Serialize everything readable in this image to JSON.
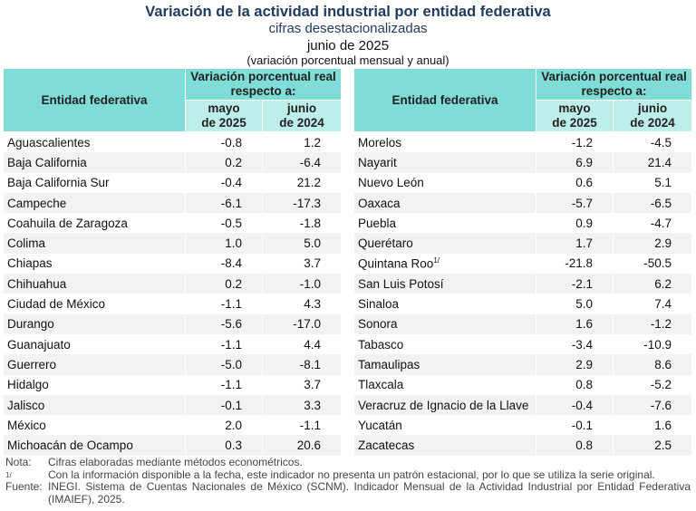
{
  "title": "Variación de la actividad industrial por entidad federativa",
  "subtitle": "cifras desestacionalizadas",
  "period": "junio de 2025",
  "unit": "(variación porcentual mensual y anual)",
  "headers": {
    "entity": "Entidad federativa",
    "group": "Variación porcentual real respecto a:",
    "col1": [
      "mayo",
      "de 2025"
    ],
    "col2": [
      "junio",
      "de 2024"
    ]
  },
  "left_rows": [
    {
      "name": "Aguascalientes",
      "may": "-0.8",
      "jun": "1.2"
    },
    {
      "name": "Baja California",
      "may": "0.2",
      "jun": "-6.4"
    },
    {
      "name": "Baja California Sur",
      "may": "-0.4",
      "jun": "21.2"
    },
    {
      "name": "Campeche",
      "may": "-6.1",
      "jun": "-17.3"
    },
    {
      "name": "Coahuila de Zaragoza",
      "may": "-0.5",
      "jun": "-1.8"
    },
    {
      "name": "Colima",
      "may": "1.0",
      "jun": "5.0"
    },
    {
      "name": "Chiapas",
      "may": "-8.4",
      "jun": "3.7"
    },
    {
      "name": "Chihuahua",
      "may": "0.2",
      "jun": "-1.0"
    },
    {
      "name": "Ciudad de México",
      "may": "-1.1",
      "jun": "4.3"
    },
    {
      "name": "Durango",
      "may": "-5.6",
      "jun": "-17.0"
    },
    {
      "name": "Guanajuato",
      "may": "-1.1",
      "jun": "4.4"
    },
    {
      "name": "Guerrero",
      "may": "-5.0",
      "jun": "-8.1"
    },
    {
      "name": "Hidalgo",
      "may": "-1.1",
      "jun": "3.7"
    },
    {
      "name": "Jalisco",
      "may": "-0.1",
      "jun": "3.3"
    },
    {
      "name": "México",
      "may": "2.0",
      "jun": "-1.1"
    },
    {
      "name": "Michoacán de Ocampo",
      "may": "0.3",
      "jun": "20.6"
    }
  ],
  "right_rows": [
    {
      "name": "Morelos",
      "may": "-1.2",
      "jun": "-4.5"
    },
    {
      "name": "Nayarit",
      "may": "6.9",
      "jun": "21.4"
    },
    {
      "name": "Nuevo León",
      "may": "0.6",
      "jun": "5.1"
    },
    {
      "name": "Oaxaca",
      "may": "-5.7",
      "jun": "-6.5"
    },
    {
      "name": "Puebla",
      "may": "0.9",
      "jun": "-4.7"
    },
    {
      "name": "Querétaro",
      "may": "1.7",
      "jun": "2.9"
    },
    {
      "name": "Quintana Roo",
      "sup": "1/",
      "may": "-21.8",
      "jun": "-50.5"
    },
    {
      "name": "San Luis Potosí",
      "may": "-2.1",
      "jun": "6.2"
    },
    {
      "name": "Sinaloa",
      "may": "5.0",
      "jun": "7.4"
    },
    {
      "name": "Sonora",
      "may": "1.6",
      "jun": "-1.2"
    },
    {
      "name": "Tabasco",
      "may": "-3.4",
      "jun": "-10.9"
    },
    {
      "name": "Tamaulipas",
      "may": "2.9",
      "jun": "8.6"
    },
    {
      "name": "Tlaxcala",
      "may": "0.8",
      "jun": "-5.2"
    },
    {
      "name": "Veracruz de Ignacio de la Llave",
      "may": "-0.4",
      "jun": "-7.6"
    },
    {
      "name": "Yucatán",
      "may": "-0.1",
      "jun": "1.6"
    },
    {
      "name": "Zacatecas",
      "may": "0.8",
      "jun": "2.5"
    }
  ],
  "notes": {
    "nota_label": "Nota:",
    "nota": "Cifras elaboradas mediante métodos econométricos.",
    "fn_label": "1/",
    "fn": "Con la información disponible a la fecha, este indicador no presenta un patrón estacional, por lo que se utiliza la serie original.",
    "source_label": "Fuente:",
    "source": "INEGI. Sistema de Cuentas Nacionales de México (SCNM). Indicador Mensual de la Actividad Industrial por Entidad Federativa (IMAIEF), 2025."
  },
  "colors": {
    "header": "#7fdcd6",
    "subheader": "#bdeeea",
    "title": "#1f3a5f",
    "alt_row": "#f2f2f2"
  }
}
